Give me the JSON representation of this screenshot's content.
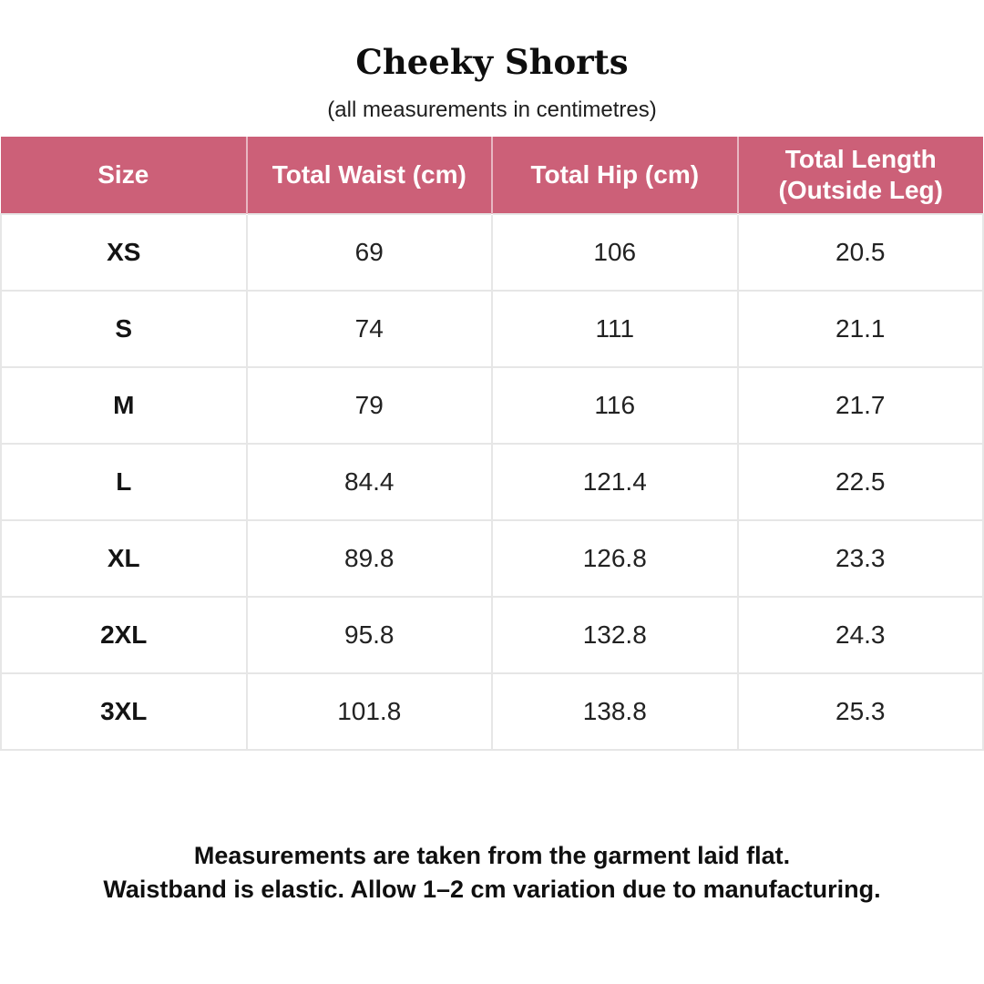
{
  "page": {
    "title": "Cheeky Shorts",
    "subtitle": "(all measurements in centimetres)"
  },
  "table": {
    "columns": [
      "Size",
      "Total Waist (cm)",
      "Total Hip (cm)",
      "Total Length (Outside Leg)"
    ],
    "rows": [
      [
        "XS",
        "69",
        "106",
        "20.5"
      ],
      [
        "S",
        "74",
        "111",
        "21.1"
      ],
      [
        "M",
        "79",
        "116",
        "21.7"
      ],
      [
        "L",
        "84.4",
        "121.4",
        "22.5"
      ],
      [
        "XL",
        "89.8",
        "126.8",
        "23.3"
      ],
      [
        "2XL",
        "95.8",
        "132.8",
        "24.3"
      ],
      [
        "3XL",
        "101.8",
        "138.8",
        "25.3"
      ]
    ]
  },
  "footer": {
    "line1": "Measurements are taken from the garment laid flat.",
    "line2": "Waistband is elastic. Allow 1–2 cm variation due to manufacturing."
  },
  "colors": {
    "header_bg": "#cc6078",
    "header_text": "#ffffff",
    "body_text": "#222222",
    "border": "#e6e6e6"
  }
}
